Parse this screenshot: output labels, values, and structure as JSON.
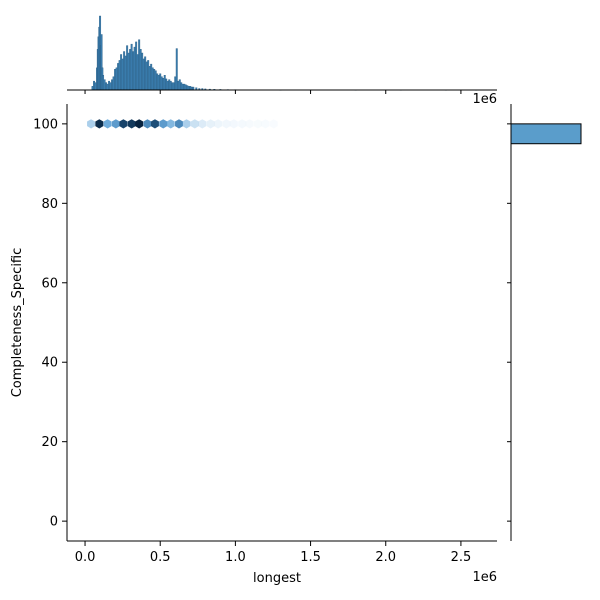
{
  "chart_data": {
    "type": "hexbin-joint",
    "title": "",
    "xlabel": "longest",
    "ylabel": "Completeness_Specific",
    "x_offset_text": "1e6",
    "x_scale_factor": 1000000,
    "xlim": [
      -120000,
      2740000
    ],
    "ylim": [
      -5,
      105
    ],
    "xticks": [
      0,
      500000,
      1000000,
      1500000,
      2000000,
      2500000
    ],
    "xtick_labels": [
      "0.0",
      "0.5",
      "1.0",
      "1.5",
      "2.0",
      "2.5"
    ],
    "yticks": [
      0,
      20,
      40,
      60,
      80,
      100
    ],
    "ytick_labels": [
      "0",
      "20",
      "40",
      "60",
      "80",
      "100"
    ],
    "grid": false,
    "colors": {
      "hist_fill": "#3b7eb0",
      "hist_edge": "#2a5f86",
      "hex_dark": "#08233f",
      "hex_mid": "#3d8fce",
      "hex_light": "#d6e9f8",
      "marginal_bar": "#5a9dcb"
    },
    "hexbin": {
      "y": 100,
      "points": [
        {
          "x": 40000,
          "density": 0.35
        },
        {
          "x": 95000,
          "density": 0.95
        },
        {
          "x": 150000,
          "density": 0.5
        },
        {
          "x": 205000,
          "density": 0.55
        },
        {
          "x": 255000,
          "density": 0.85
        },
        {
          "x": 310000,
          "density": 0.9
        },
        {
          "x": 360000,
          "density": 1.0
        },
        {
          "x": 415000,
          "density": 0.6
        },
        {
          "x": 465000,
          "density": 0.8
        },
        {
          "x": 520000,
          "density": 0.55
        },
        {
          "x": 570000,
          "density": 0.45
        },
        {
          "x": 625000,
          "density": 0.6
        },
        {
          "x": 675000,
          "density": 0.35
        },
        {
          "x": 730000,
          "density": 0.25
        },
        {
          "x": 780000,
          "density": 0.18
        },
        {
          "x": 835000,
          "density": 0.13
        },
        {
          "x": 885000,
          "density": 0.09
        },
        {
          "x": 940000,
          "density": 0.07
        },
        {
          "x": 990000,
          "density": 0.05
        },
        {
          "x": 1045000,
          "density": 0.04
        },
        {
          "x": 1095000,
          "density": 0.03
        },
        {
          "x": 1150000,
          "density": 0.02
        },
        {
          "x": 1200000,
          "density": 0.015
        },
        {
          "x": 1255000,
          "density": 0.01
        }
      ]
    },
    "top_histogram": {
      "bins": [
        {
          "x": 50000,
          "h": 0.05
        },
        {
          "x": 60000,
          "h": 0.12
        },
        {
          "x": 70000,
          "h": 0.1
        },
        {
          "x": 80000,
          "h": 0.3
        },
        {
          "x": 85000,
          "h": 0.55
        },
        {
          "x": 90000,
          "h": 0.72
        },
        {
          "x": 95000,
          "h": 0.85
        },
        {
          "x": 100000,
          "h": 1.0
        },
        {
          "x": 105000,
          "h": 0.6
        },
        {
          "x": 110000,
          "h": 0.75
        },
        {
          "x": 115000,
          "h": 0.3
        },
        {
          "x": 120000,
          "h": 0.2
        },
        {
          "x": 130000,
          "h": 0.14
        },
        {
          "x": 140000,
          "h": 0.1
        },
        {
          "x": 150000,
          "h": 0.08
        },
        {
          "x": 160000,
          "h": 0.12
        },
        {
          "x": 170000,
          "h": 0.1
        },
        {
          "x": 180000,
          "h": 0.14
        },
        {
          "x": 190000,
          "h": 0.18
        },
        {
          "x": 200000,
          "h": 0.28
        },
        {
          "x": 210000,
          "h": 0.3
        },
        {
          "x": 220000,
          "h": 0.36
        },
        {
          "x": 230000,
          "h": 0.4
        },
        {
          "x": 240000,
          "h": 0.48
        },
        {
          "x": 250000,
          "h": 0.42
        },
        {
          "x": 260000,
          "h": 0.52
        },
        {
          "x": 270000,
          "h": 0.46
        },
        {
          "x": 280000,
          "h": 0.6
        },
        {
          "x": 290000,
          "h": 0.5
        },
        {
          "x": 300000,
          "h": 0.55
        },
        {
          "x": 310000,
          "h": 0.62
        },
        {
          "x": 320000,
          "h": 0.52
        },
        {
          "x": 330000,
          "h": 0.58
        },
        {
          "x": 340000,
          "h": 0.65
        },
        {
          "x": 350000,
          "h": 0.48
        },
        {
          "x": 360000,
          "h": 0.68
        },
        {
          "x": 370000,
          "h": 0.55
        },
        {
          "x": 380000,
          "h": 0.5
        },
        {
          "x": 390000,
          "h": 0.42
        },
        {
          "x": 400000,
          "h": 0.45
        },
        {
          "x": 410000,
          "h": 0.38
        },
        {
          "x": 420000,
          "h": 0.4
        },
        {
          "x": 430000,
          "h": 0.32
        },
        {
          "x": 440000,
          "h": 0.35
        },
        {
          "x": 450000,
          "h": 0.3
        },
        {
          "x": 460000,
          "h": 0.28
        },
        {
          "x": 470000,
          "h": 0.26
        },
        {
          "x": 480000,
          "h": 0.22
        },
        {
          "x": 490000,
          "h": 0.2
        },
        {
          "x": 500000,
          "h": 0.22
        },
        {
          "x": 510000,
          "h": 0.18
        },
        {
          "x": 520000,
          "h": 0.16
        },
        {
          "x": 530000,
          "h": 0.2
        },
        {
          "x": 540000,
          "h": 0.15
        },
        {
          "x": 550000,
          "h": 0.12
        },
        {
          "x": 560000,
          "h": 0.14
        },
        {
          "x": 570000,
          "h": 0.12
        },
        {
          "x": 580000,
          "h": 0.1
        },
        {
          "x": 590000,
          "h": 0.1
        },
        {
          "x": 600000,
          "h": 0.18
        },
        {
          "x": 610000,
          "h": 0.56
        },
        {
          "x": 620000,
          "h": 0.12
        },
        {
          "x": 630000,
          "h": 0.14
        },
        {
          "x": 640000,
          "h": 0.1
        },
        {
          "x": 650000,
          "h": 0.08
        },
        {
          "x": 660000,
          "h": 0.08
        },
        {
          "x": 670000,
          "h": 0.07
        },
        {
          "x": 680000,
          "h": 0.06
        },
        {
          "x": 690000,
          "h": 0.05
        },
        {
          "x": 700000,
          "h": 0.05
        },
        {
          "x": 710000,
          "h": 0.04
        },
        {
          "x": 720000,
          "h": 0.04
        },
        {
          "x": 740000,
          "h": 0.03
        },
        {
          "x": 760000,
          "h": 0.02
        },
        {
          "x": 780000,
          "h": 0.02
        },
        {
          "x": 800000,
          "h": 0.015
        },
        {
          "x": 830000,
          "h": 0.012
        },
        {
          "x": 860000,
          "h": 0.01
        },
        {
          "x": 900000,
          "h": 0.008
        },
        {
          "x": 950000,
          "h": 0.006
        },
        {
          "x": 1000000,
          "h": 0.005
        },
        {
          "x": 1050000,
          "h": 0.004
        },
        {
          "x": 1100000,
          "h": 0.003
        },
        {
          "x": 1200000,
          "h": 0.003
        },
        {
          "x": 1300000,
          "h": 0.002
        },
        {
          "x": 1500000,
          "h": 0.002
        },
        {
          "x": 1800000,
          "h": 0.002
        },
        {
          "x": 2100000,
          "h": 0.002
        },
        {
          "x": 2400000,
          "h": 0.002
        },
        {
          "x": 2600000,
          "h": 0.002
        }
      ],
      "bin_width": 10000
    },
    "right_histogram": {
      "bins": [
        {
          "y0": 95,
          "y1": 100,
          "length": 1.0
        }
      ]
    }
  }
}
